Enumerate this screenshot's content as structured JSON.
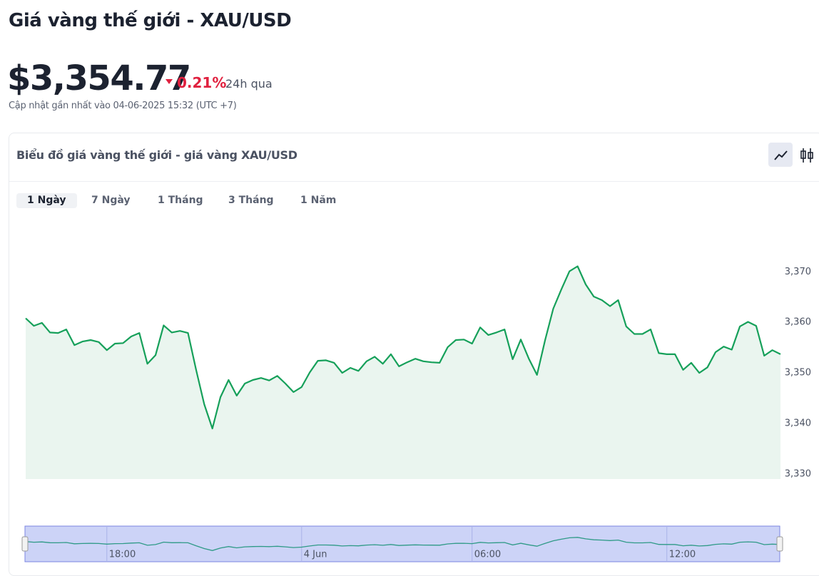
{
  "header": {
    "title": "Giá vàng thế giới - XAU/USD",
    "price": "$3,354.77",
    "change": "0.21%",
    "period": "24h qua",
    "updated": "Cập nhật gần nhất vào 04-06-2025 15:32 (UTC +7)"
  },
  "card": {
    "title": "Biểu đồ giá vàng thế giới - giá vàng XAU/USD",
    "tabs": [
      "1 Ngày",
      "7 Ngày",
      "1 Tháng",
      "3 Tháng",
      "1 Năm"
    ]
  },
  "chart_data": {
    "type": "area",
    "color": "#16a05a",
    "fill": "#eaf5ef",
    "categories": [
      null,
      null,
      null,
      null,
      null,
      null,
      null,
      null,
      null,
      null,
      "18:00",
      null,
      null,
      null,
      null,
      null,
      null,
      null,
      null,
      null,
      null,
      null,
      null,
      null,
      null,
      null,
      null,
      null,
      null,
      null,
      null,
      null,
      null,
      null,
      "4 Jun",
      null,
      null,
      null,
      null,
      null,
      null,
      null,
      null,
      null,
      null,
      null,
      null,
      null,
      null,
      null,
      null,
      null,
      null,
      null,
      null,
      "06:00",
      null,
      null,
      null,
      null,
      null,
      null,
      null,
      null,
      null,
      null,
      null,
      null,
      null,
      null,
      null,
      null,
      null,
      null,
      null,
      null,
      null,
      null,
      null,
      "12:00",
      null,
      null,
      null,
      null,
      null,
      null,
      null,
      null,
      null,
      null,
      null,
      null,
      null,
      null
    ],
    "values": [
      3360.8,
      3359.3,
      3359.9,
      3358.0,
      3357.9,
      3358.6,
      3355.5,
      3356.2,
      3356.5,
      3356.1,
      3354.5,
      3355.8,
      3355.9,
      3357.2,
      3357.9,
      3351.8,
      3353.5,
      3359.4,
      3358.0,
      3358.3,
      3357.9,
      3350.6,
      3343.8,
      3339.0,
      3345.2,
      3348.6,
      3345.5,
      3347.9,
      3348.6,
      3349.0,
      3348.5,
      3349.4,
      3347.9,
      3346.2,
      3347.2,
      3350.1,
      3352.4,
      3352.5,
      3352.0,
      3350.0,
      3351.0,
      3350.4,
      3352.3,
      3353.2,
      3351.8,
      3353.7,
      3351.3,
      3352.1,
      3352.8,
      3352.3,
      3352.1,
      3352.0,
      3355.1,
      3356.5,
      3356.6,
      3355.8,
      3359.0,
      3357.5,
      3358.0,
      3358.6,
      3352.7,
      3356.6,
      3352.8,
      3349.6,
      3356.5,
      3362.7,
      3366.5,
      3370.1,
      3371.1,
      3367.5,
      3365.1,
      3364.4,
      3363.2,
      3364.4,
      3359.2,
      3357.7,
      3357.7,
      3358.6,
      3353.9,
      3353.7,
      3353.7,
      3350.6,
      3352.0,
      3350.0,
      3351.1,
      3354.1,
      3355.2,
      3354.6,
      3359.2,
      3360.1,
      3359.3,
      3353.4,
      3354.5,
      3353.7
    ],
    "ylim": [
      3329,
      3373
    ],
    "yticks": [
      {
        "value": 3330,
        "label": "3,330"
      },
      {
        "value": 3340,
        "label": "3,340"
      },
      {
        "value": 3350,
        "label": "3,350"
      },
      {
        "value": 3360,
        "label": "3,360"
      },
      {
        "value": 3370,
        "label": "3,370"
      }
    ],
    "grid": false
  }
}
